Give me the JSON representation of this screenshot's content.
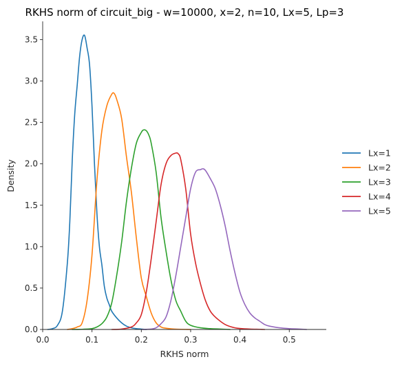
{
  "chart_data": {
    "type": "line",
    "title": "RKHS norm of circuit_big - w=10000, x=2, n=10, Lx=5, Lp=3",
    "xlabel": "RKHS norm",
    "ylabel": "Density",
    "xlim": [
      0.0,
      0.575
    ],
    "ylim": [
      0.0,
      3.72
    ],
    "xticks": [
      0.0,
      0.1,
      0.2,
      0.3,
      0.4,
      0.5
    ],
    "xtick_labels": [
      "0.0",
      "0.1",
      "0.2",
      "0.3",
      "0.4",
      "0.5"
    ],
    "yticks": [
      0.0,
      0.5,
      1.0,
      1.5,
      2.0,
      2.5,
      3.0,
      3.5
    ],
    "ytick_labels": [
      "0.0",
      "0.5",
      "1.0",
      "1.5",
      "2.0",
      "2.5",
      "3.0",
      "3.5"
    ],
    "grid": false,
    "legend_position": "right",
    "series": [
      {
        "name": "Lx=1",
        "color": "#1f77b4",
        "x": [
          0.01,
          0.02,
          0.03,
          0.04,
          0.05,
          0.055,
          0.06,
          0.065,
          0.07,
          0.075,
          0.08,
          0.085,
          0.09,
          0.095,
          0.1,
          0.105,
          0.11,
          0.115,
          0.12,
          0.125,
          0.13,
          0.135,
          0.14,
          0.15,
          0.16,
          0.17,
          0.18,
          0.19,
          0.2,
          0.21
        ],
        "y": [
          0.0,
          0.01,
          0.05,
          0.22,
          0.8,
          1.3,
          2.05,
          2.6,
          2.95,
          3.3,
          3.5,
          3.55,
          3.4,
          3.2,
          2.7,
          2.0,
          1.4,
          1.0,
          0.78,
          0.52,
          0.38,
          0.3,
          0.22,
          0.14,
          0.08,
          0.04,
          0.02,
          0.01,
          0.005,
          0.0
        ]
      },
      {
        "name": "Lx=2",
        "color": "#ff7f0e",
        "x": [
          0.05,
          0.06,
          0.07,
          0.08,
          0.09,
          0.1,
          0.11,
          0.12,
          0.13,
          0.14,
          0.145,
          0.15,
          0.16,
          0.17,
          0.18,
          0.19,
          0.2,
          0.21,
          0.22,
          0.23,
          0.24,
          0.25,
          0.26,
          0.27,
          0.28,
          0.29,
          0.3
        ],
        "y": [
          0.0,
          0.01,
          0.03,
          0.08,
          0.35,
          0.9,
          1.8,
          2.4,
          2.7,
          2.84,
          2.85,
          2.78,
          2.55,
          2.08,
          1.65,
          1.1,
          0.62,
          0.4,
          0.2,
          0.08,
          0.03,
          0.015,
          0.008,
          0.004,
          0.002,
          0.001,
          0.0
        ]
      },
      {
        "name": "Lx=3",
        "color": "#2ca02c",
        "x": [
          0.06,
          0.08,
          0.09,
          0.1,
          0.11,
          0.12,
          0.13,
          0.14,
          0.15,
          0.16,
          0.17,
          0.18,
          0.19,
          0.2,
          0.205,
          0.21,
          0.215,
          0.22,
          0.23,
          0.24,
          0.25,
          0.26,
          0.27,
          0.28,
          0.29,
          0.3,
          0.32,
          0.34,
          0.36,
          0.38
        ],
        "y": [
          0.0,
          0.002,
          0.005,
          0.01,
          0.03,
          0.07,
          0.15,
          0.32,
          0.65,
          1.05,
          1.55,
          1.95,
          2.25,
          2.38,
          2.41,
          2.4,
          2.35,
          2.25,
          1.9,
          1.35,
          0.95,
          0.6,
          0.35,
          0.22,
          0.1,
          0.05,
          0.02,
          0.01,
          0.005,
          0.0
        ]
      },
      {
        "name": "Lx=4",
        "color": "#d62728",
        "x": [
          0.14,
          0.16,
          0.18,
          0.19,
          0.2,
          0.21,
          0.22,
          0.23,
          0.24,
          0.25,
          0.26,
          0.27,
          0.275,
          0.28,
          0.29,
          0.3,
          0.31,
          0.32,
          0.33,
          0.34,
          0.35,
          0.36,
          0.37,
          0.38,
          0.39,
          0.4,
          0.42,
          0.44,
          0.45
        ],
        "y": [
          0.0,
          0.005,
          0.03,
          0.08,
          0.18,
          0.45,
          0.85,
          1.3,
          1.75,
          2.0,
          2.1,
          2.13,
          2.12,
          2.05,
          1.7,
          1.15,
          0.8,
          0.55,
          0.35,
          0.22,
          0.15,
          0.1,
          0.06,
          0.035,
          0.02,
          0.012,
          0.005,
          0.002,
          0.0
        ]
      },
      {
        "name": "Lx=5",
        "color": "#9467bd",
        "x": [
          0.2,
          0.22,
          0.23,
          0.24,
          0.25,
          0.26,
          0.27,
          0.28,
          0.29,
          0.3,
          0.31,
          0.32,
          0.325,
          0.33,
          0.34,
          0.35,
          0.36,
          0.37,
          0.38,
          0.39,
          0.4,
          0.41,
          0.42,
          0.43,
          0.44,
          0.45,
          0.46,
          0.48,
          0.5,
          0.52,
          0.535
        ],
        "y": [
          0.0,
          0.005,
          0.02,
          0.07,
          0.15,
          0.35,
          0.65,
          1.0,
          1.35,
          1.7,
          1.9,
          1.93,
          1.94,
          1.92,
          1.82,
          1.7,
          1.5,
          1.25,
          0.95,
          0.68,
          0.45,
          0.3,
          0.2,
          0.14,
          0.1,
          0.06,
          0.04,
          0.02,
          0.01,
          0.005,
          0.0
        ]
      }
    ]
  }
}
